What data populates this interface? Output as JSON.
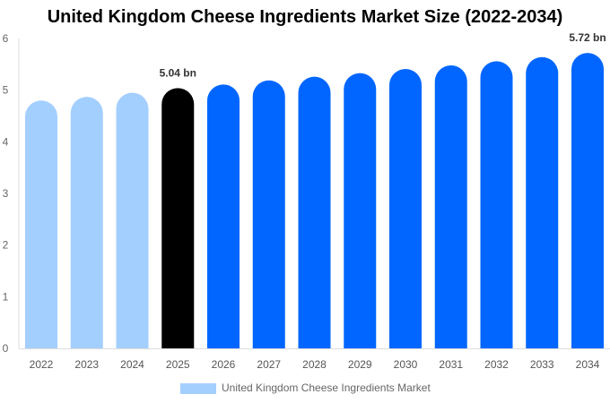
{
  "chart_data": {
    "type": "bar",
    "title": "United Kingdom Cheese Ingredients Market Size (2022-2034)",
    "categories": [
      "2022",
      "2023",
      "2024",
      "2025",
      "2026",
      "2027",
      "2028",
      "2029",
      "2030",
      "2031",
      "2032",
      "2033",
      "2034"
    ],
    "series": [
      {
        "name": "United Kingdom Cheese Ingredients Market",
        "values": [
          4.8,
          4.87,
          4.95,
          5.04,
          5.11,
          5.19,
          5.26,
          5.33,
          5.41,
          5.48,
          5.56,
          5.64,
          5.72
        ]
      }
    ],
    "bar_colors": [
      "#a3cfff",
      "#a3cfff",
      "#a3cfff",
      "#000000",
      "#0066ff",
      "#0066ff",
      "#0066ff",
      "#0066ff",
      "#0066ff",
      "#0066ff",
      "#0066ff",
      "#0066ff",
      "#0066ff"
    ],
    "data_labels": [
      {
        "category": "2025",
        "text": "5.04 bn"
      },
      {
        "category": "2034",
        "text": "5.72 bn"
      }
    ],
    "yticks": [
      "0",
      "1",
      "2",
      "3",
      "4",
      "5",
      "6"
    ],
    "ylim": [
      0,
      6
    ],
    "xlabel": "",
    "ylabel": "",
    "grid": false,
    "legend": {
      "position": "bottom",
      "label": "United Kingdom Cheese Ingredients Market",
      "color": "#a3cfff"
    }
  }
}
